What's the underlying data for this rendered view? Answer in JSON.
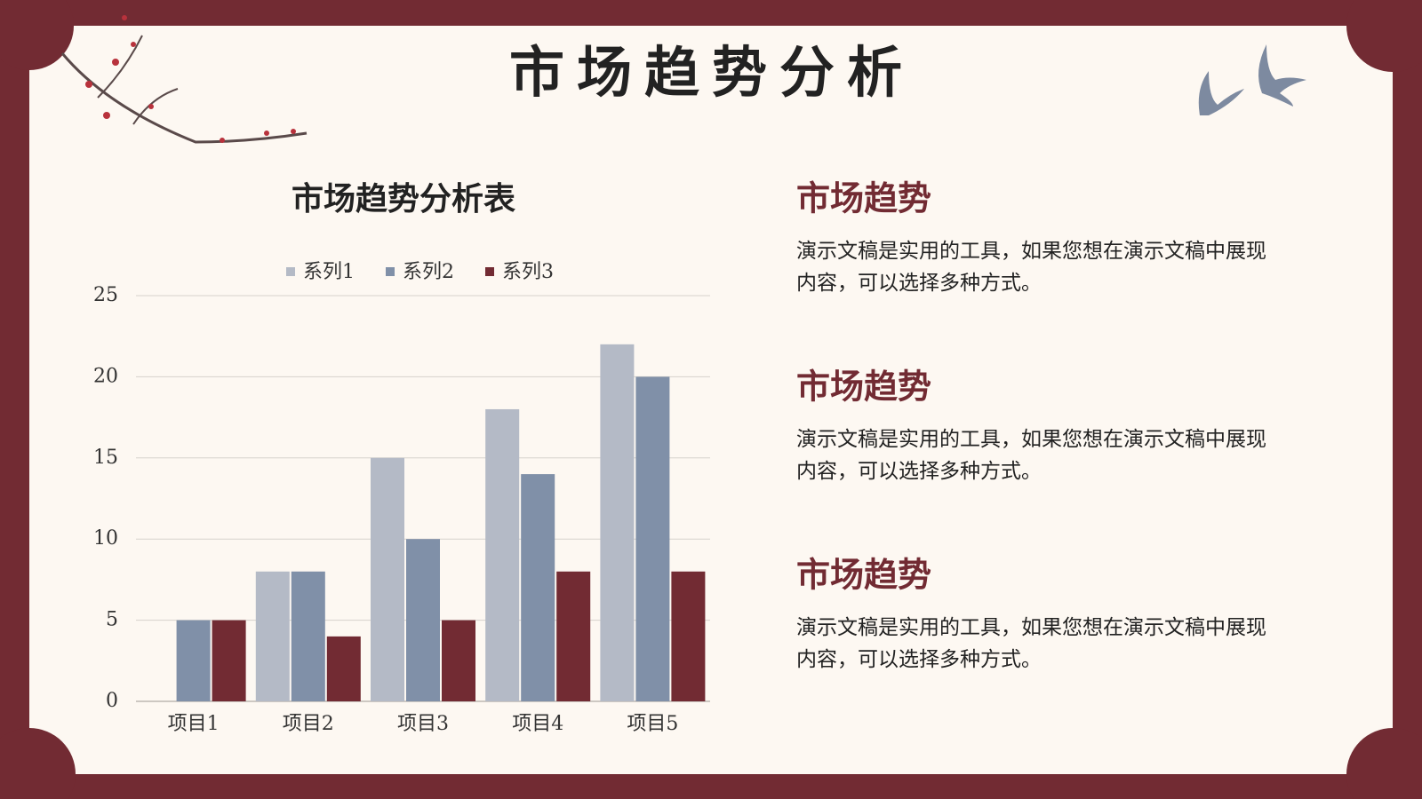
{
  "title": "市场趋势分析",
  "chart_data": {
    "type": "bar",
    "title": "市场趋势分析表",
    "categories": [
      "项目1",
      "项目2",
      "项目3",
      "项目4",
      "项目5"
    ],
    "series": [
      {
        "name": "系列1",
        "color": "#b4bac6",
        "values": [
          0,
          8,
          15,
          18,
          22
        ]
      },
      {
        "name": "系列2",
        "color": "#8090a8",
        "values": [
          5,
          8,
          10,
          14,
          20
        ]
      },
      {
        "name": "系列3",
        "color": "#722b33",
        "values": [
          5,
          4,
          5,
          8,
          8
        ]
      }
    ],
    "ylim": [
      0,
      25
    ],
    "yticks": [
      0,
      5,
      10,
      15,
      20,
      25
    ],
    "grid": true,
    "legend": "top"
  },
  "sections": [
    {
      "heading": "市场趋势",
      "lines": [
        "演示文稿是实用的工具，如果您想在演示文稿中展现",
        "内容，可以选择多种方式。"
      ]
    },
    {
      "heading": "市场趋势",
      "lines": [
        "演示文稿是实用的工具，如果您想在演示文稿中展现",
        "内容，可以选择多种方式。"
      ]
    },
    {
      "heading": "市场趋势",
      "lines": [
        "演示文稿是实用的工具，如果您想在演示文稿中展现",
        "内容，可以选择多种方式。"
      ]
    }
  ]
}
